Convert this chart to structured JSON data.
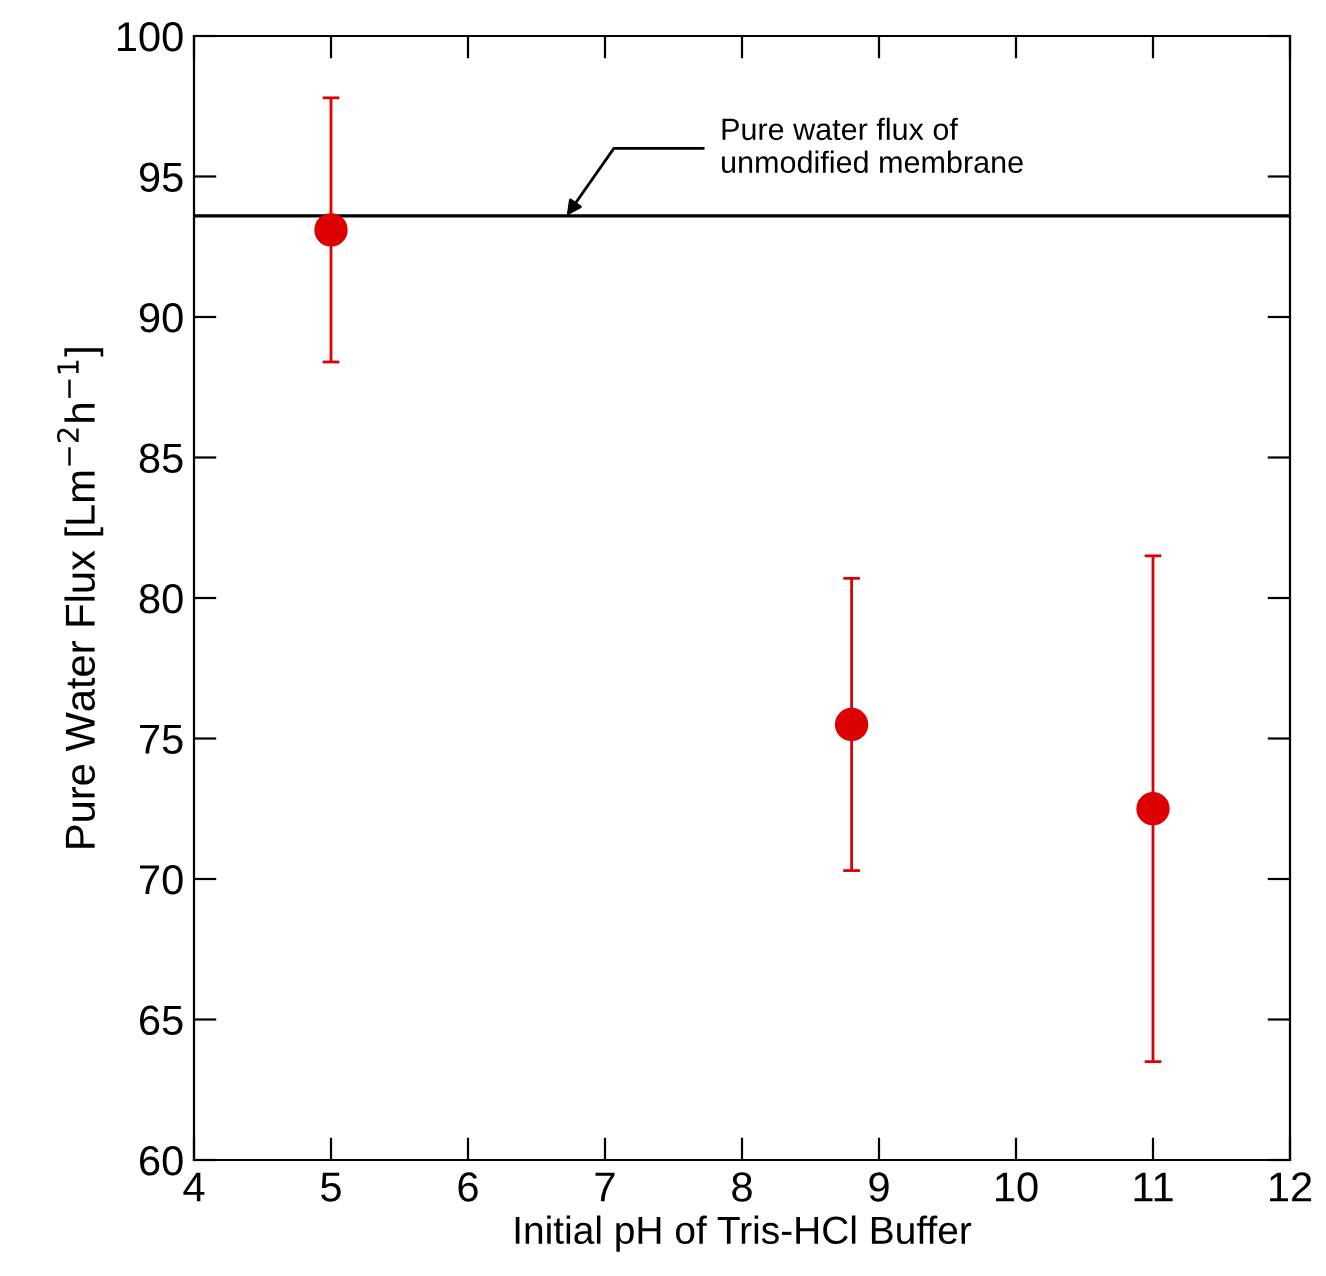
{
  "chart_data": {
    "type": "scatter",
    "xlabel": "Initial pH of Tris-HCl Buffer",
    "ylabel": "Pure Water Flux [Lm$^{−2}$h$^{−1}$]",
    "x": [
      5,
      8.8,
      11
    ],
    "series": [
      {
        "color": "#dd0000",
        "values": [
          93.1,
          75.5,
          72.5
        ],
        "errors": [
          [
            88.4,
            97.8
          ],
          [
            70.3,
            80.7
          ],
          [
            63.5,
            81.5
          ]
        ]
      }
    ],
    "marker": "circle",
    "xlim": [
      4,
      12
    ],
    "xticks": [
      4,
      5,
      6,
      7,
      8,
      9,
      10,
      11,
      12
    ],
    "ylim": [
      60,
      100
    ],
    "yticks": [
      60,
      65,
      70,
      75,
      80,
      85,
      90,
      95,
      100
    ],
    "ref_lines": [
      {
        "axis": "y",
        "value": 93.6,
        "label": "Pure water flux of\nunmodified membrane",
        "color": "#000000"
      }
    ],
    "grid": false,
    "legend": false
  }
}
